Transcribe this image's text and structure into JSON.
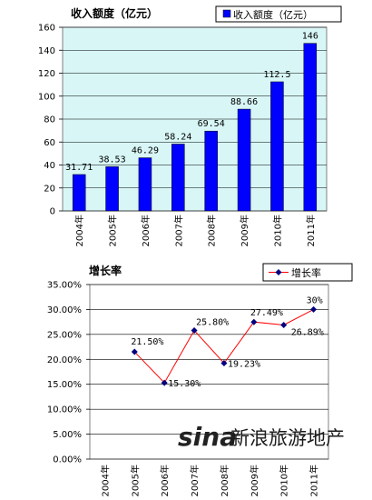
{
  "chart_data": [
    {
      "type": "bar",
      "title": "收入额度（亿元）",
      "legend": {
        "label": "收入额度（亿元）",
        "position": "top-right"
      },
      "categories": [
        "2004年",
        "2005年",
        "2006年",
        "2007年",
        "2008年",
        "2009年",
        "2010年",
        "2011年"
      ],
      "values": [
        31.71,
        38.53,
        46.29,
        58.24,
        69.54,
        88.66,
        112.5,
        146
      ],
      "value_labels": [
        "31.71",
        "38.53",
        "46.29",
        "58.24",
        "69.54",
        "88.66",
        "112.5",
        "146"
      ],
      "yticks": [
        "0",
        "20",
        "40",
        "60",
        "80",
        "100",
        "120",
        "140",
        "160"
      ],
      "ylim": [
        0,
        160
      ],
      "bar_color": "#0000ff",
      "plot_bg": "#d8f6f6"
    },
    {
      "type": "line",
      "title": "增长率",
      "legend": {
        "label": "增长率",
        "position": "top-right"
      },
      "categories": [
        "2004年",
        "2005年",
        "2006年",
        "2007年",
        "2008年",
        "2009年",
        "2010年",
        "2011年"
      ],
      "values": [
        null,
        21.5,
        15.3,
        25.8,
        19.23,
        27.49,
        26.89,
        30
      ],
      "value_labels": [
        "",
        "21.50%",
        "15.30%",
        "25.80%",
        "19.23%",
        "27.49%",
        "26.89%",
        "30%"
      ],
      "yticks": [
        "0.00%",
        "5.00%",
        "10.00%",
        "15.00%",
        "20.00%",
        "25.00%",
        "30.00%",
        "35.00%"
      ],
      "ylim": [
        0,
        35
      ],
      "line_color": "#ff0000",
      "marker_color": "#000080"
    }
  ],
  "watermark": {
    "logo": "sina",
    "text": "新浪旅游地产"
  }
}
